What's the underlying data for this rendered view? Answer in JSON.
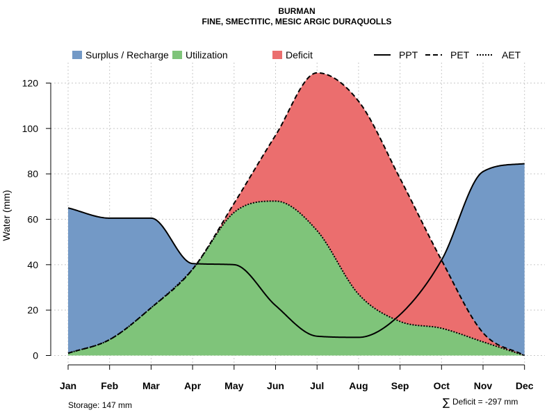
{
  "chart_data": {
    "type": "area",
    "title": "BURMAN",
    "subtitle": "FINE, SMECTITIC, MESIC ARGIC DURAQUOLLS",
    "ylabel": "Water (mm)",
    "xlabel": "",
    "ylim": [
      0,
      125
    ],
    "yticks": [
      0,
      20,
      40,
      60,
      80,
      100,
      120
    ],
    "categories": [
      "Jan",
      "Feb",
      "Mar",
      "Apr",
      "May",
      "Jun",
      "Jul",
      "Aug",
      "Sep",
      "Oct",
      "Nov",
      "Dec"
    ],
    "series": [
      {
        "name": "PPT",
        "style": "solid",
        "values": [
          65,
          60.5,
          60.5,
          40.5,
          40,
          22,
          8.5,
          8,
          18,
          42,
          81,
          84.5
        ]
      },
      {
        "name": "PET",
        "style": "dashed",
        "values": [
          1,
          7,
          21,
          38,
          67,
          97,
          124.5,
          112,
          78,
          42,
          10,
          0
        ]
      },
      {
        "name": "AET",
        "style": "dotted",
        "values": [
          1,
          7,
          21,
          38,
          63,
          68,
          55,
          27,
          15,
          12,
          6,
          0
        ]
      }
    ],
    "legend": [
      {
        "label": "Surplus / Recharge",
        "kind": "fill",
        "color": "#7399c6"
      },
      {
        "label": "Utilization",
        "kind": "fill",
        "color": "#7fc47a"
      },
      {
        "label": "Deficit",
        "kind": "fill",
        "color": "#eb6e6e"
      },
      {
        "label": "PPT",
        "kind": "line",
        "style": "solid"
      },
      {
        "label": "PET",
        "kind": "line",
        "style": "dashed"
      },
      {
        "label": "AET",
        "kind": "line",
        "style": "dotted"
      }
    ],
    "legend_position": "top",
    "grid": true,
    "colors": {
      "surplus": "#7399c6",
      "utilization": "#7fc47a",
      "deficit": "#eb6e6e",
      "line": "#000000"
    },
    "annotations": {
      "storage": "Storage: 147 mm",
      "deficit_symbol": "∑",
      "deficit": "Deficit = -297 mm"
    }
  }
}
